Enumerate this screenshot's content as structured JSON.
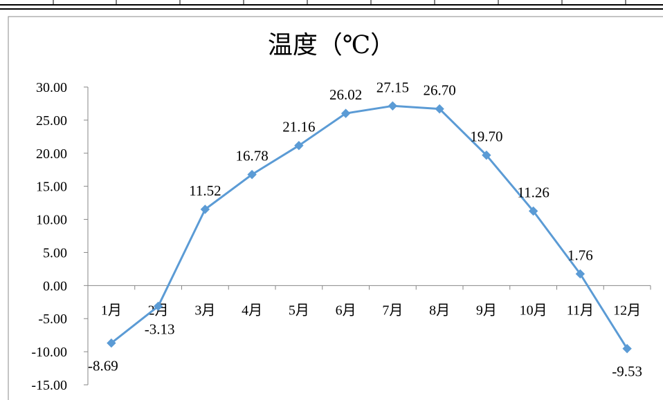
{
  "chart_data": {
    "type": "line",
    "title": "温度（℃）",
    "xlabel": "",
    "ylabel": "",
    "categories": [
      "1月",
      "2月",
      "3月",
      "4月",
      "5月",
      "6月",
      "7月",
      "8月",
      "9月",
      "10月",
      "11月",
      "12月"
    ],
    "series": [
      {
        "values": [
          -8.69,
          -3.13,
          11.52,
          16.78,
          21.16,
          26.02,
          27.15,
          26.7,
          19.7,
          11.26,
          1.76,
          -9.53
        ],
        "labels": [
          "-8.69",
          "-3.13",
          "11.52",
          "16.78",
          "21.16",
          "26.02",
          "27.15",
          "26.70",
          "19.70",
          "11.26",
          "1.76",
          "-9.53"
        ],
        "color": "#5B9BD5",
        "marker": "diamond"
      }
    ],
    "ylim": [
      -15,
      30
    ],
    "yticks": [
      "-15.00",
      "-10.00",
      "-5.00",
      "0.00",
      "5.00",
      "10.00",
      "15.00",
      "20.00",
      "25.00",
      "30.00"
    ],
    "grid": false,
    "legend": "none"
  }
}
